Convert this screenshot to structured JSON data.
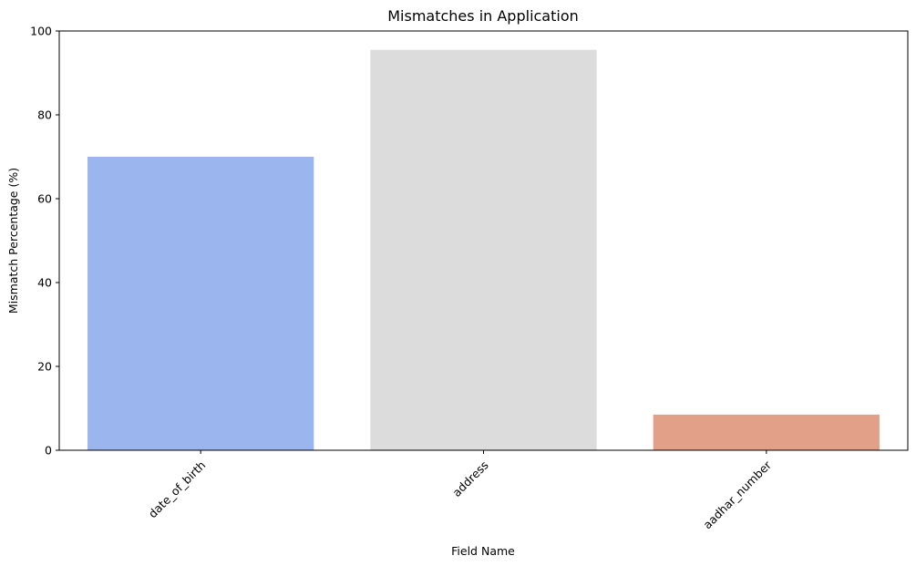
{
  "chart_data": {
    "type": "bar",
    "title": "Mismatches in Application",
    "xlabel": "Field Name",
    "ylabel": "Mismatch Percentage (%)",
    "categories": [
      "date_of_birth",
      "address",
      "aadhar_number"
    ],
    "values": [
      70,
      95.5,
      8.5
    ],
    "colors": [
      "#9bb5ef",
      "#dcdcdc",
      "#e3a088"
    ],
    "ylim": [
      0,
      100
    ],
    "yticks": [
      0,
      20,
      40,
      60,
      80,
      100
    ],
    "ytick_labels": [
      "0",
      "20",
      "40",
      "60",
      "80",
      "100"
    ],
    "grid": false,
    "legend": false
  }
}
